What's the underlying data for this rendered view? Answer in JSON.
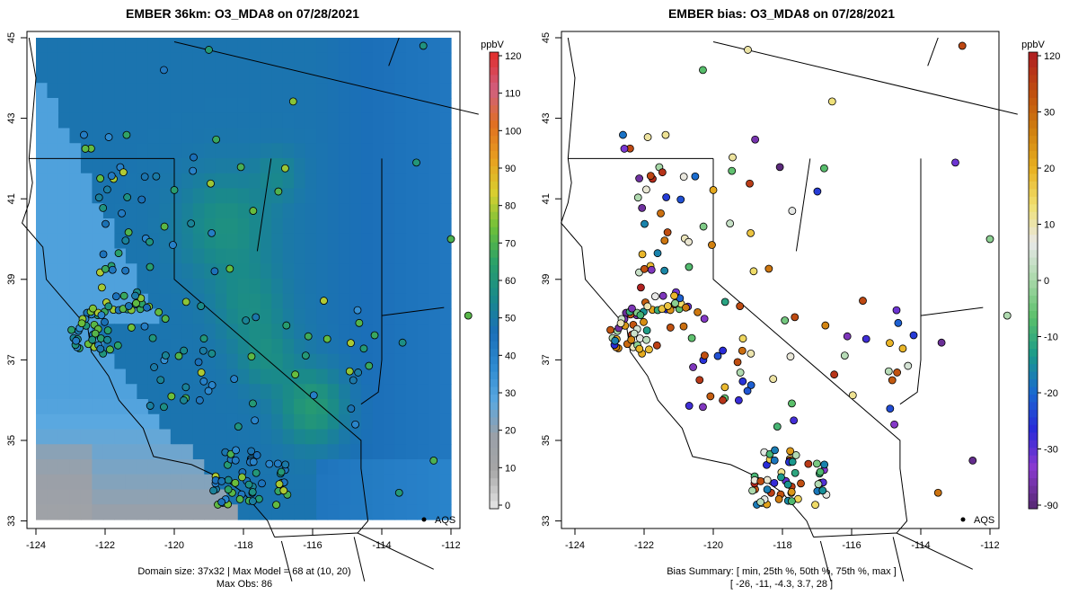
{
  "left_panel": {
    "title": "EMBER 36km: O3_MDA8 on 07/28/2021",
    "legend_unit": "ppbV",
    "legend_ticks": [
      "120",
      "110",
      "100",
      "90",
      "80",
      "70",
      "60",
      "50",
      "40",
      "30",
      "20",
      "10",
      "0"
    ],
    "point_label": "AQS",
    "footer_line1": "Domain size: 37x32 | Max Model = 68 at (10, 20)",
    "footer_line2": "Max Obs: 86"
  },
  "right_panel": {
    "title": "EMBER bias: O3_MDA8 on 07/28/2021",
    "legend_unit": "ppbV",
    "legend_ticks": [
      "120",
      "30",
      "20",
      "10",
      "0",
      "-10",
      "-20",
      "-30",
      "-90"
    ],
    "point_label": "AQS",
    "footer_line1": "Bias Summary: [ min, 25th %, 50th %, 75th %, max ]",
    "footer_line2": "[ -26,   -11,   -4.3,   3.7,   28 ]"
  },
  "axes": {
    "x_ticks": [
      "-124",
      "-122",
      "-120",
      "-118",
      "-116",
      "-114",
      "-112"
    ],
    "y_ticks": [
      "45",
      "43",
      "41",
      "39",
      "37",
      "35",
      "33"
    ]
  },
  "colors": {
    "ramp": [
      "#e0e0e0",
      "#a6a6a6",
      "#9aa0a8",
      "#5aa8e0",
      "#2e8ad0",
      "#1b6fb8",
      "#1a8a8a",
      "#2aa06a",
      "#6cbf3a",
      "#d8d030",
      "#e8a020",
      "#e07020",
      "#d06080",
      "#e03030"
    ],
    "bias_ramp": [
      "#5a2a7a",
      "#8a3ad0",
      "#2a2ad8",
      "#1a6ad0",
      "#1a9a8a",
      "#5abf6a",
      "#a8d8a8",
      "#e8e8e8",
      "#f0e070",
      "#e8b020",
      "#d08010",
      "#c05010",
      "#b02020"
    ]
  }
}
